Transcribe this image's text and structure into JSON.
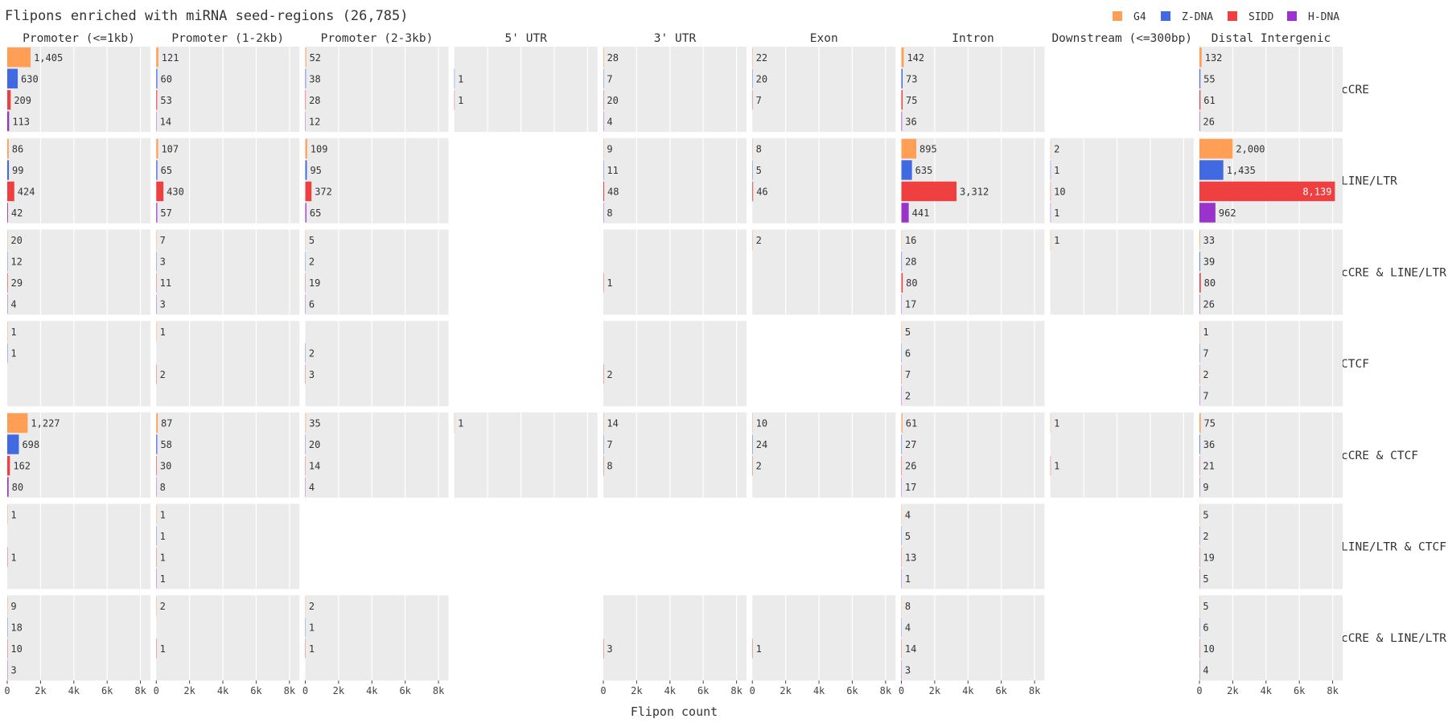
{
  "chart_data": {
    "type": "bar",
    "orientation": "horizontal",
    "title": "Flipons enriched with miRNA seed-regions (26,785)",
    "xlabel": "Flipon count",
    "xlim": [
      0,
      8600
    ],
    "xticks": [
      0,
      2000,
      4000,
      6000,
      8000
    ],
    "xtick_labels": [
      "0",
      "2k",
      "4k",
      "6k",
      "8k"
    ],
    "grid": true,
    "legend_position": "top-right",
    "series": [
      {
        "name": "G4",
        "color": "#FF9F55"
      },
      {
        "name": "Z-DNA",
        "color": "#4169E1"
      },
      {
        "name": "SIDD",
        "color": "#EE4040"
      },
      {
        "name": "H-DNA",
        "color": "#9933CC"
      }
    ],
    "columns": [
      "Promoter (<=1kb)",
      "Promoter (1-2kb)",
      "Promoter (2-3kb)",
      "5' UTR",
      "3' UTR",
      "Exon",
      "Intron",
      "Downstream (<=300bp)",
      "Distal Intergenic"
    ],
    "rows": [
      "cCRE",
      "LINE/LTR",
      "cCRE & LINE/LTR",
      "CTCF",
      "cCRE & CTCF",
      "LINE/LTR & CTCF",
      "cCRE & LINE/LTR & CTCF"
    ],
    "cells": [
      [
        [
          1405,
          630,
          209,
          113
        ],
        [
          121,
          60,
          53,
          14
        ],
        [
          52,
          38,
          28,
          12
        ],
        [
          null,
          1,
          1,
          null
        ],
        [
          28,
          7,
          20,
          4
        ],
        [
          22,
          20,
          7,
          null
        ],
        [
          142,
          73,
          75,
          36
        ],
        null,
        [
          132,
          55,
          61,
          26
        ]
      ],
      [
        [
          86,
          99,
          424,
          42
        ],
        [
          107,
          65,
          430,
          57
        ],
        [
          109,
          95,
          372,
          65
        ],
        null,
        [
          9,
          11,
          48,
          8
        ],
        [
          8,
          5,
          46,
          null
        ],
        [
          895,
          635,
          3312,
          441
        ],
        [
          2,
          1,
          10,
          1
        ],
        [
          2000,
          1435,
          8139,
          962
        ]
      ],
      [
        [
          20,
          12,
          29,
          4
        ],
        [
          7,
          3,
          11,
          3
        ],
        [
          5,
          2,
          19,
          6
        ],
        null,
        [
          null,
          null,
          1,
          null
        ],
        [
          2,
          null,
          null,
          null
        ],
        [
          16,
          28,
          80,
          17
        ],
        [
          1,
          null,
          null,
          null
        ],
        [
          33,
          39,
          80,
          26
        ]
      ],
      [
        [
          1,
          1,
          null,
          null
        ],
        [
          1,
          null,
          2,
          null
        ],
        [
          null,
          2,
          3,
          null
        ],
        null,
        [
          null,
          null,
          2,
          null
        ],
        null,
        [
          5,
          6,
          7,
          2
        ],
        null,
        [
          1,
          7,
          2,
          7
        ]
      ],
      [
        [
          1227,
          698,
          162,
          80
        ],
        [
          87,
          58,
          30,
          8
        ],
        [
          35,
          20,
          14,
          4
        ],
        [
          1,
          null,
          null,
          null
        ],
        [
          14,
          7,
          8,
          null
        ],
        [
          10,
          24,
          2,
          null
        ],
        [
          61,
          27,
          26,
          17
        ],
        [
          1,
          null,
          1,
          null
        ],
        [
          75,
          36,
          21,
          9
        ]
      ],
      [
        [
          1,
          null,
          1,
          null
        ],
        [
          1,
          1,
          1,
          1
        ],
        null,
        null,
        null,
        null,
        [
          4,
          5,
          13,
          1
        ],
        null,
        [
          5,
          2,
          19,
          5
        ]
      ],
      [
        [
          9,
          18,
          10,
          3
        ],
        [
          2,
          null,
          1,
          null
        ],
        [
          2,
          1,
          1,
          null
        ],
        null,
        [
          null,
          null,
          3,
          null
        ],
        [
          null,
          null,
          1,
          null
        ],
        [
          8,
          4,
          14,
          3
        ],
        null,
        [
          5,
          6,
          10,
          4
        ]
      ]
    ]
  }
}
